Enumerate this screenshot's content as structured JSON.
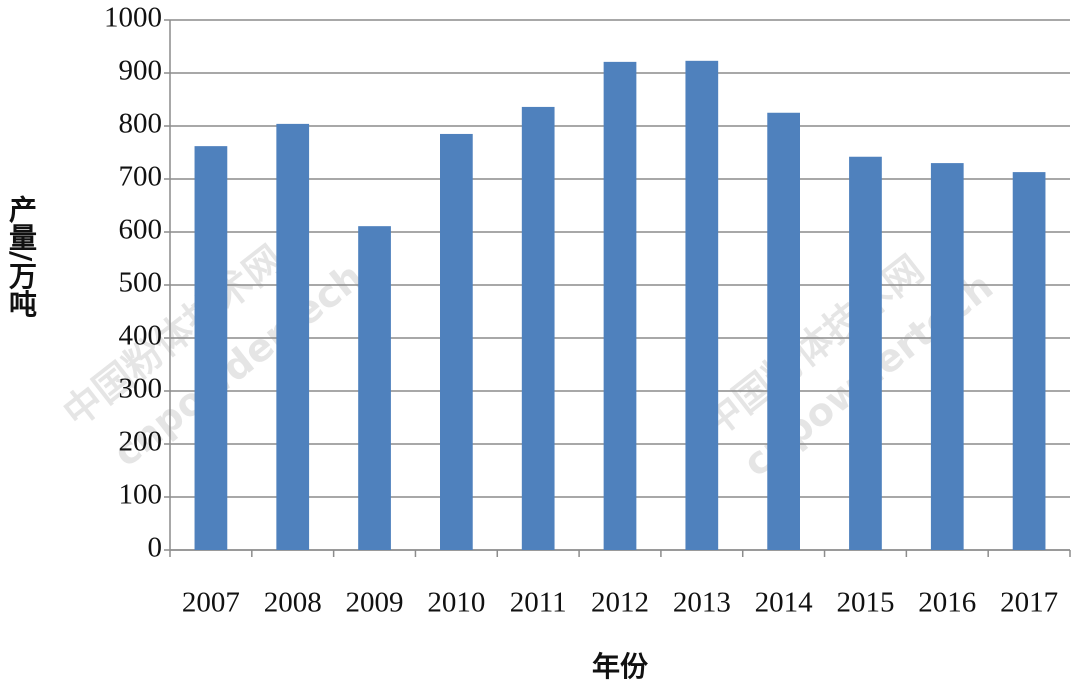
{
  "chart_data": {
    "type": "bar",
    "categories": [
      "2007",
      "2008",
      "2009",
      "2010",
      "2011",
      "2012",
      "2013",
      "2014",
      "2015",
      "2016",
      "2017"
    ],
    "values": [
      762,
      804,
      611,
      785,
      836,
      921,
      923,
      825,
      742,
      730,
      713
    ],
    "color": "#4f81bd",
    "ylim": [
      0,
      1000
    ],
    "yticks": [
      0,
      100,
      200,
      300,
      400,
      500,
      600,
      700,
      800,
      900,
      1000
    ],
    "grid": true,
    "x_label": "年份",
    "y_label": "产量/万吨",
    "watermark": [
      "中国粉体技术网",
      "cnpowdertech"
    ]
  }
}
